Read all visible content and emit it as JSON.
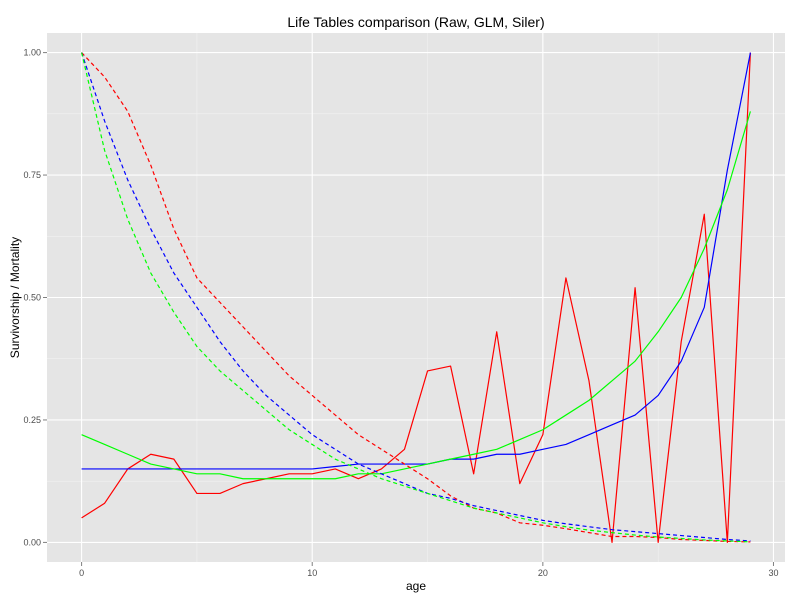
{
  "chart_data": {
    "type": "line",
    "title": "Life Tables comparison (Raw, GLM, Siler)",
    "xlabel": "age",
    "ylabel": "Survivorship / Mortality",
    "xlim": [
      -1.5,
      30.5
    ],
    "ylim": [
      -0.04,
      1.04
    ],
    "x_ticks": [
      0,
      10,
      20,
      30
    ],
    "y_ticks": [
      0.0,
      0.25,
      0.5,
      0.75,
      1.0
    ],
    "x_tick_labels": [
      "0",
      "10",
      "20",
      "30"
    ],
    "y_tick_labels": [
      "0.00",
      "0.25",
      "0.50",
      "0.75",
      "1.00"
    ],
    "grid": true,
    "legend": "none",
    "background": "#e5e5e5",
    "gridline_color": "#ffffff",
    "series": [
      {
        "color": "#ff0000",
        "dashed": false,
        "x": [
          0,
          1,
          2,
          3,
          4,
          5,
          6,
          7,
          8,
          9,
          10,
          11,
          12,
          13,
          14,
          15,
          16,
          17,
          18,
          19,
          20,
          21,
          22,
          23,
          24,
          25,
          26,
          27,
          28,
          29
        ],
        "values": [
          0.05,
          0.08,
          0.15,
          0.18,
          0.17,
          0.1,
          0.1,
          0.12,
          0.13,
          0.14,
          0.14,
          0.15,
          0.13,
          0.15,
          0.19,
          0.35,
          0.36,
          0.14,
          0.43,
          0.12,
          0.22,
          0.54,
          0.33,
          0.0,
          0.52,
          0.0,
          0.41,
          0.67,
          0.0,
          1.0
        ]
      },
      {
        "color": "#0000ff",
        "dashed": false,
        "x": [
          0,
          1,
          2,
          3,
          4,
          5,
          6,
          7,
          8,
          9,
          10,
          11,
          12,
          13,
          14,
          15,
          16,
          17,
          18,
          19,
          20,
          21,
          22,
          23,
          24,
          25,
          26,
          27,
          28,
          29
        ],
        "values": [
          0.15,
          0.15,
          0.15,
          0.15,
          0.15,
          0.15,
          0.15,
          0.15,
          0.15,
          0.15,
          0.15,
          0.155,
          0.16,
          0.16,
          0.16,
          0.16,
          0.17,
          0.17,
          0.18,
          0.18,
          0.19,
          0.2,
          0.22,
          0.24,
          0.26,
          0.3,
          0.37,
          0.48,
          0.76,
          1.0
        ]
      },
      {
        "color": "#00ff00",
        "dashed": false,
        "x": [
          0,
          1,
          2,
          3,
          4,
          5,
          6,
          7,
          8,
          9,
          10,
          11,
          12,
          13,
          14,
          15,
          16,
          17,
          18,
          19,
          20,
          21,
          22,
          23,
          24,
          25,
          26,
          27,
          28,
          29
        ],
        "values": [
          0.22,
          0.2,
          0.18,
          0.16,
          0.15,
          0.14,
          0.14,
          0.13,
          0.13,
          0.13,
          0.13,
          0.13,
          0.14,
          0.14,
          0.15,
          0.16,
          0.17,
          0.18,
          0.19,
          0.21,
          0.23,
          0.26,
          0.29,
          0.33,
          0.37,
          0.43,
          0.5,
          0.6,
          0.72,
          0.88
        ]
      },
      {
        "color": "#ff0000",
        "dashed": true,
        "x": [
          0,
          1,
          2,
          3,
          4,
          5,
          6,
          7,
          8,
          9,
          10,
          11,
          12,
          13,
          14,
          15,
          16,
          17,
          18,
          19,
          20,
          21,
          22,
          23,
          24,
          25,
          26,
          27,
          28,
          29
        ],
        "values": [
          1.0,
          0.95,
          0.88,
          0.77,
          0.64,
          0.54,
          0.49,
          0.44,
          0.39,
          0.34,
          0.3,
          0.26,
          0.22,
          0.19,
          0.16,
          0.13,
          0.095,
          0.07,
          0.06,
          0.04,
          0.035,
          0.028,
          0.02,
          0.012,
          0.012,
          0.01,
          0.006,
          0.004,
          0.002,
          0.001
        ]
      },
      {
        "color": "#0000ff",
        "dashed": true,
        "x": [
          0,
          1,
          2,
          3,
          4,
          5,
          6,
          7,
          8,
          9,
          10,
          11,
          12,
          13,
          14,
          15,
          16,
          17,
          18,
          19,
          20,
          21,
          22,
          23,
          24,
          25,
          26,
          27,
          28,
          29
        ],
        "values": [
          1.0,
          0.86,
          0.74,
          0.64,
          0.55,
          0.48,
          0.41,
          0.35,
          0.3,
          0.26,
          0.22,
          0.19,
          0.16,
          0.14,
          0.12,
          0.1,
          0.09,
          0.075,
          0.065,
          0.055,
          0.045,
          0.038,
          0.032,
          0.026,
          0.022,
          0.018,
          0.014,
          0.01,
          0.006,
          0.003
        ]
      },
      {
        "color": "#00ff00",
        "dashed": true,
        "x": [
          0,
          1,
          2,
          3,
          4,
          5,
          6,
          7,
          8,
          9,
          10,
          11,
          12,
          13,
          14,
          15,
          16,
          17,
          18,
          19,
          20,
          21,
          22,
          23,
          24,
          25,
          26,
          27,
          28,
          29
        ],
        "values": [
          1.0,
          0.8,
          0.66,
          0.55,
          0.47,
          0.4,
          0.35,
          0.31,
          0.27,
          0.23,
          0.2,
          0.17,
          0.15,
          0.13,
          0.115,
          0.1,
          0.085,
          0.07,
          0.06,
          0.05,
          0.04,
          0.032,
          0.025,
          0.02,
          0.015,
          0.011,
          0.008,
          0.005,
          0.003,
          0.001
        ]
      }
    ]
  }
}
